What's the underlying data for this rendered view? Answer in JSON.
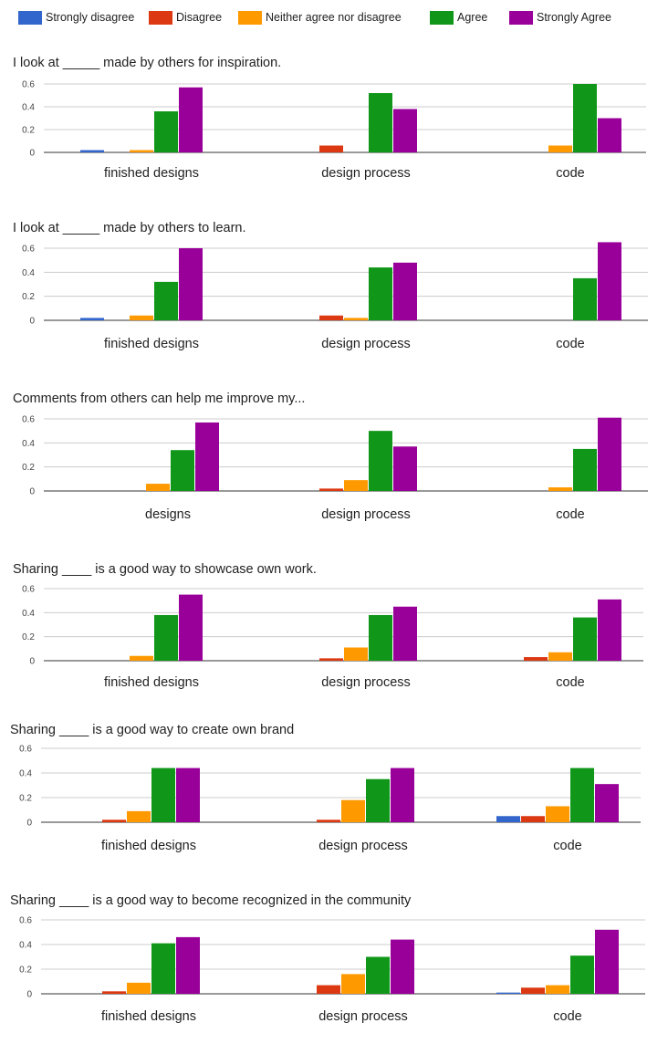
{
  "legend": [
    {
      "label": "Strongly disagree",
      "color": "#3366cc"
    },
    {
      "label": "Disagree",
      "color": "#dc3912"
    },
    {
      "label": "Neither agree nor disagree",
      "color": "#ff9900"
    },
    {
      "label": "Agree",
      "color": "#109618"
    },
    {
      "label": "Strongly Agree",
      "color": "#990099"
    }
  ],
  "chart_data": [
    {
      "type": "bar",
      "title": "I look at _____ made by others for inspiration.",
      "categories": [
        "finished designs",
        "design process",
        "code"
      ],
      "yticks": [
        "0",
        "0.2",
        "0.4",
        "0.6"
      ],
      "ylim": [
        0,
        0.6
      ],
      "series": [
        {
          "name": "Strongly disagree",
          "values": [
            0.02,
            0.0,
            0.0
          ]
        },
        {
          "name": "Disagree",
          "values": [
            0.0,
            0.06,
            0.0
          ]
        },
        {
          "name": "Neither agree nor disagree",
          "values": [
            0.02,
            0.0,
            0.06
          ]
        },
        {
          "name": "Agree",
          "values": [
            0.36,
            0.52,
            0.6
          ]
        },
        {
          "name": "Strongly Agree",
          "values": [
            0.57,
            0.38,
            0.3
          ]
        }
      ]
    },
    {
      "type": "bar",
      "title": "I look at _____ made by others to learn.",
      "categories": [
        "finished designs",
        "design process",
        "code"
      ],
      "yticks": [
        "0",
        "0.2",
        "0.4",
        "0.6"
      ],
      "ylim": [
        0,
        0.6
      ],
      "series": [
        {
          "name": "Strongly disagree",
          "values": [
            0.02,
            0.0,
            0.0
          ]
        },
        {
          "name": "Disagree",
          "values": [
            0.0,
            0.04,
            0.0
          ]
        },
        {
          "name": "Neither agree nor disagree",
          "values": [
            0.04,
            0.02,
            0.0
          ]
        },
        {
          "name": "Agree",
          "values": [
            0.32,
            0.44,
            0.35
          ]
        },
        {
          "name": "Strongly Agree",
          "values": [
            0.6,
            0.48,
            0.65
          ]
        }
      ]
    },
    {
      "type": "bar",
      "title": "Comments from others can help me improve my...",
      "categories": [
        "designs",
        "design process",
        "code"
      ],
      "yticks": [
        "0",
        "0.2",
        "0.4",
        "0.6"
      ],
      "ylim": [
        0,
        0.6
      ],
      "series": [
        {
          "name": "Strongly disagree",
          "values": [
            0.0,
            0.0,
            0.0
          ]
        },
        {
          "name": "Disagree",
          "values": [
            0.0,
            0.02,
            0.0
          ]
        },
        {
          "name": "Neither agree nor disagree",
          "values": [
            0.06,
            0.09,
            0.03
          ]
        },
        {
          "name": "Agree",
          "values": [
            0.34,
            0.5,
            0.35
          ]
        },
        {
          "name": "Strongly Agree",
          "values": [
            0.57,
            0.37,
            0.61
          ]
        }
      ]
    },
    {
      "type": "bar",
      "title": "Sharing ____ is a good way to showcase own work.",
      "categories": [
        "finished designs",
        "design process",
        "code"
      ],
      "yticks": [
        "0",
        "0.2",
        "0.4",
        "0.6"
      ],
      "ylim": [
        0,
        0.6
      ],
      "series": [
        {
          "name": "Strongly disagree",
          "values": [
            0.0,
            0.0,
            0.0
          ]
        },
        {
          "name": "Disagree",
          "values": [
            0.0,
            0.02,
            0.03
          ]
        },
        {
          "name": "Neither agree nor disagree",
          "values": [
            0.04,
            0.11,
            0.07
          ]
        },
        {
          "name": "Agree",
          "values": [
            0.38,
            0.38,
            0.36
          ]
        },
        {
          "name": "Strongly Agree",
          "values": [
            0.55,
            0.45,
            0.51
          ]
        }
      ]
    },
    {
      "type": "bar",
      "title": "Sharing ____ is a good way to create own brand",
      "categories": [
        "finished designs",
        "design process",
        "code"
      ],
      "yticks": [
        "0",
        "0.2",
        "0.4",
        "0.6"
      ],
      "ylim": [
        0,
        0.6
      ],
      "series": [
        {
          "name": "Strongly disagree",
          "values": [
            0.0,
            0.0,
            0.05
          ]
        },
        {
          "name": "Disagree",
          "values": [
            0.02,
            0.02,
            0.05
          ]
        },
        {
          "name": "Neither agree nor disagree",
          "values": [
            0.09,
            0.18,
            0.13
          ]
        },
        {
          "name": "Agree",
          "values": [
            0.44,
            0.35,
            0.44
          ]
        },
        {
          "name": "Strongly Agree",
          "values": [
            0.44,
            0.44,
            0.31
          ]
        }
      ]
    },
    {
      "type": "bar",
      "title": "Sharing ____ is a good way to become recognized in the community",
      "categories": [
        "finished designs",
        "design process",
        "code"
      ],
      "yticks": [
        "0",
        "0.2",
        "0.4",
        "0.6"
      ],
      "ylim": [
        0,
        0.6
      ],
      "series": [
        {
          "name": "Strongly disagree",
          "values": [
            0.0,
            0.0,
            0.01
          ]
        },
        {
          "name": "Disagree",
          "values": [
            0.02,
            0.07,
            0.05
          ]
        },
        {
          "name": "Neither agree nor disagree",
          "values": [
            0.09,
            0.16,
            0.07
          ]
        },
        {
          "name": "Agree",
          "values": [
            0.41,
            0.3,
            0.31
          ]
        },
        {
          "name": "Strongly Agree",
          "values": [
            0.46,
            0.44,
            0.52
          ]
        }
      ]
    }
  ]
}
